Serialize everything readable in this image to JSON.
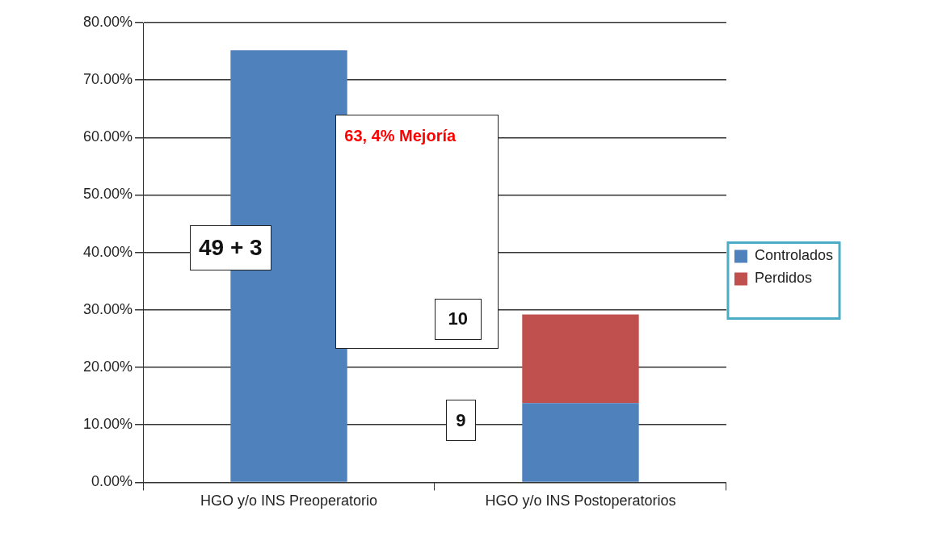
{
  "chart_data": {
    "type": "bar",
    "categories": [
      "HGO y/o INS Preoperatorio",
      "HGO y/o INS Postoperatorios"
    ],
    "series": [
      {
        "name": "Controlados",
        "color": "#4f81bd",
        "values": [
          75.2,
          13.8
        ]
      },
      {
        "name": "Perdidos",
        "color": "#c0504d",
        "values": [
          null,
          15.4
        ]
      }
    ],
    "stacked": true,
    "ylim": [
      0,
      80
    ],
    "yticks": [
      {
        "value": 0,
        "label": "0.00%"
      },
      {
        "value": 10,
        "label": "10.00%"
      },
      {
        "value": 20,
        "label": "20.00%"
      },
      {
        "value": 30,
        "label": "30.00%"
      },
      {
        "value": 40,
        "label": "40.00%"
      },
      {
        "value": 50,
        "label": "50.00%"
      },
      {
        "value": 60,
        "label": "60.00%"
      },
      {
        "value": 70,
        "label": "70.00%"
      },
      {
        "value": 80,
        "label": "80.00%"
      }
    ],
    "grid": "y",
    "legend": "right",
    "annotations": [
      "49 + 3",
      "63, 4% Mejoría",
      "10",
      "9"
    ]
  }
}
